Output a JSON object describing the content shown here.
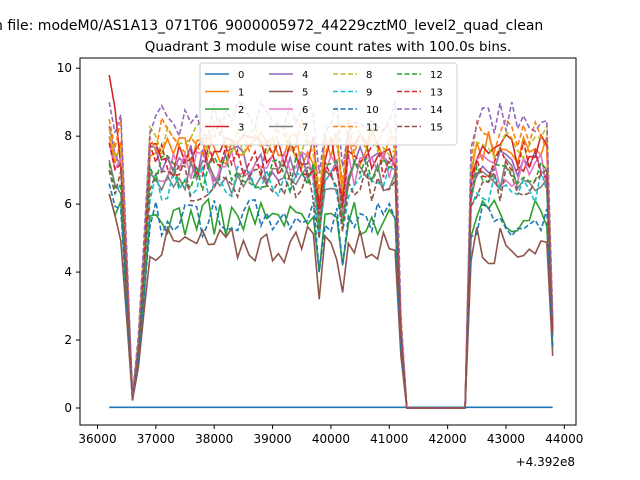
{
  "chart_data": {
    "type": "line",
    "suptitle": "n file: modeM0/AS1A13_071T06_9000005972_44229cztM0_level2_quad_clean",
    "title": "Quadrant 3 module wise count rates with 100.0s bins.",
    "xlabel": "",
    "ylabel": "",
    "x_offset_label": "+4.392e8",
    "xlim": [
      35700,
      44200
    ],
    "ylim": [
      -0.5,
      10.3
    ],
    "xticks": [
      36000,
      37000,
      38000,
      39000,
      40000,
      41000,
      42000,
      43000,
      44000
    ],
    "yticks": [
      0,
      2,
      4,
      6,
      8,
      10
    ],
    "x": [
      36200,
      36300,
      36400,
      36500,
      36600,
      36700,
      36800,
      36900,
      37000,
      37100,
      37200,
      37300,
      37400,
      37500,
      37600,
      37700,
      37800,
      37900,
      38000,
      38100,
      38200,
      38300,
      38400,
      38500,
      38600,
      38700,
      38800,
      38900,
      39000,
      39100,
      39200,
      39300,
      39400,
      39500,
      39600,
      39700,
      39800,
      39900,
      40000,
      40100,
      40200,
      40300,
      40400,
      40500,
      40600,
      40700,
      40800,
      40900,
      41000,
      41100,
      41200,
      41300,
      41400,
      41500,
      41600,
      41700,
      41800,
      41900,
      42000,
      42100,
      42200,
      42300,
      42400,
      42500,
      42600,
      42700,
      42800,
      42900,
      43000,
      43100,
      43200,
      43300,
      43400,
      43500,
      43600,
      43700,
      43800
    ],
    "grid": false,
    "legend_position": "top-center",
    "legend_columns": 4,
    "series": [
      {
        "name": "0",
        "color": "#1f77b4",
        "dash": "solid",
        "level": 0.02,
        "start": 0.02
      },
      {
        "name": "1",
        "color": "#ff7f0e",
        "dash": "solid",
        "level": 7.6,
        "start": 8.0
      },
      {
        "name": "2",
        "color": "#2ca02c",
        "dash": "solid",
        "level": 5.6,
        "start": 6.3
      },
      {
        "name": "3",
        "color": "#d62728",
        "dash": "solid",
        "level": 7.5,
        "start": 9.8
      },
      {
        "name": "4",
        "color": "#9467bd",
        "dash": "solid",
        "level": 7.2,
        "start": 8.3
      },
      {
        "name": "5",
        "color": "#8c564b",
        "dash": "solid",
        "level": 4.8,
        "start": 6.3
      },
      {
        "name": "6",
        "color": "#e377c2",
        "dash": "solid",
        "level": 7.0,
        "start": 7.8
      },
      {
        "name": "7",
        "color": "#7f7f7f",
        "dash": "solid",
        "level": 6.8,
        "start": 7.3
      },
      {
        "name": "8",
        "color": "#bcbd22",
        "dash": "dashed",
        "level": 7.9,
        "start": 8.2
      },
      {
        "name": "9",
        "color": "#17becf",
        "dash": "dashed",
        "level": 6.6,
        "start": 7.0
      },
      {
        "name": "10",
        "color": "#1f77b4",
        "dash": "dashed",
        "level": 5.6,
        "start": 6.6
      },
      {
        "name": "11",
        "color": "#ff7f0e",
        "dash": "dashed",
        "level": 8.0,
        "start": 8.5
      },
      {
        "name": "12",
        "color": "#2ca02c",
        "dash": "dashed",
        "level": 6.9,
        "start": 7.2
      },
      {
        "name": "13",
        "color": "#d62728",
        "dash": "dashed",
        "level": 7.3,
        "start": 7.8
      },
      {
        "name": "14",
        "color": "#9467bd",
        "dash": "dashed",
        "level": 8.5,
        "start": 9.0
      },
      {
        "name": "15",
        "color": "#8c564b",
        "dash": "dashed",
        "level": 6.6,
        "start": 7.0
      }
    ]
  }
}
